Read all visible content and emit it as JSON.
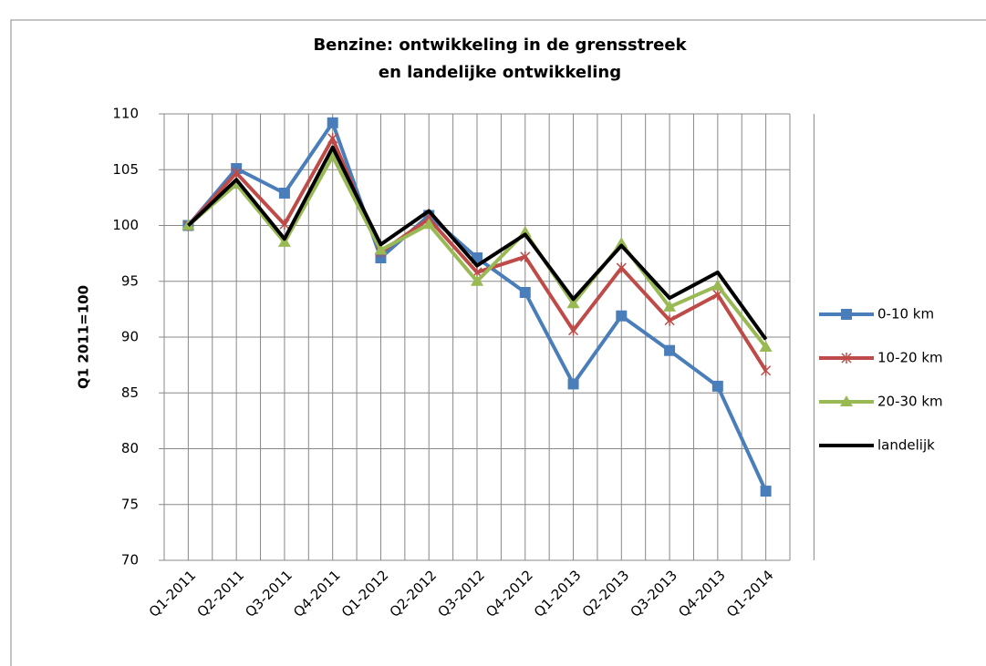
{
  "chart_data": {
    "type": "line",
    "title": [
      "Benzine: ontwikkeling in de grensstreek",
      "en landelijke ontwikkeling"
    ],
    "y_label": "Q1 2011=100",
    "categories": [
      "Q1-2011",
      "Q2-2011",
      "Q3-2011",
      "Q4-2011",
      "Q1-2012",
      "Q2-2012",
      "Q3-2012",
      "Q4-2012",
      "Q1-2013",
      "Q2-2013",
      "Q3-2013",
      "Q4-2013",
      "Q1-2014"
    ],
    "series": [
      {
        "name": "0-10 km",
        "color": "#4a7ebb",
        "marker": "square",
        "values": [
          100,
          105.1,
          102.9,
          109.2,
          97.1,
          100.9,
          97.1,
          94,
          85.8,
          91.9,
          88.8,
          85.6,
          76.2
        ]
      },
      {
        "name": "10-20 km",
        "color": "#be4b48",
        "marker": "star",
        "values": [
          100,
          104.7,
          100.1,
          107.8,
          97.6,
          100.6,
          95.8,
          97.2,
          90.6,
          96.2,
          91.5,
          93.8,
          87
        ]
      },
      {
        "name": "20-30 km",
        "color": "#98b954",
        "marker": "triangle",
        "values": [
          100,
          103.7,
          98.5,
          106.2,
          97.8,
          100.1,
          95,
          99.4,
          93,
          98.4,
          92.7,
          94.6,
          89.1
        ]
      },
      {
        "name": "landelijk",
        "color": "#000000",
        "marker": "none",
        "values": [
          100,
          104.1,
          98.8,
          107,
          98.3,
          101.3,
          96.4,
          99.2,
          93.4,
          98.2,
          93.5,
          95.8,
          89.8
        ]
      }
    ],
    "ylim": [
      70,
      110
    ],
    "yticks": [
      70,
      75,
      80,
      85,
      90,
      95,
      100,
      105,
      110
    ],
    "grid": true,
    "legend": "right"
  }
}
